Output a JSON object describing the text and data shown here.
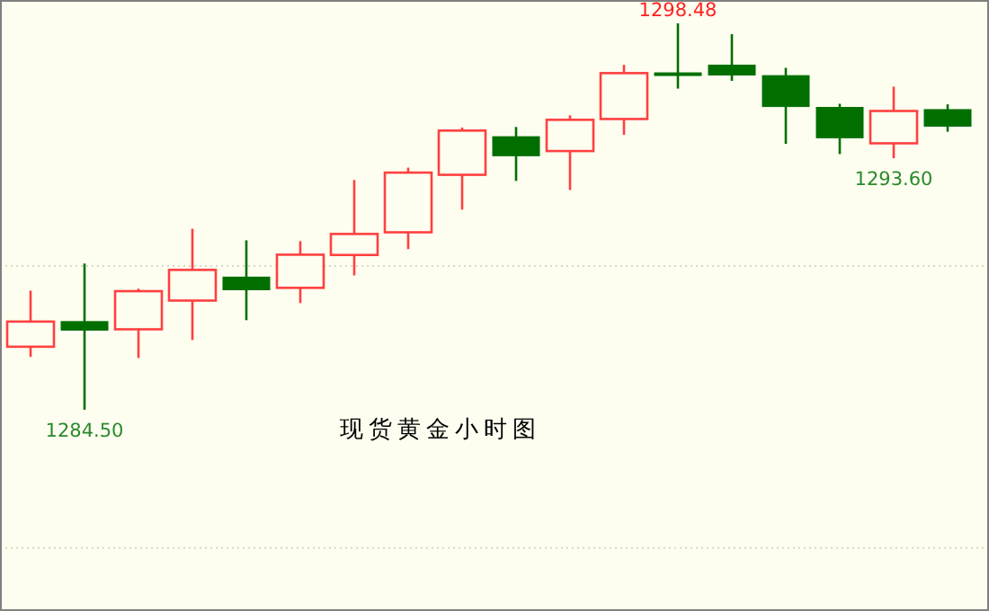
{
  "chart_data": {
    "type": "candlestick",
    "title": "现货黄金小时图",
    "categories": [
      null,
      null,
      null,
      null,
      null,
      null,
      null,
      null,
      null,
      null,
      null,
      null,
      null,
      null,
      null,
      null,
      null,
      null
    ],
    "ohlc": [
      [
        1286.78,
        1288.81,
        1286.41,
        1287.69
      ],
      [
        1287.69,
        1289.79,
        1284.5,
        1287.38
      ],
      [
        1287.41,
        1288.88,
        1286.37,
        1288.79
      ],
      [
        1288.45,
        1291.05,
        1287.02,
        1289.56
      ],
      [
        1289.3,
        1290.63,
        1287.74,
        1288.84
      ],
      [
        1288.91,
        1290.6,
        1288.36,
        1290.11
      ],
      [
        1290.1,
        1292.81,
        1289.36,
        1290.86
      ],
      [
        1290.92,
        1293.26,
        1290.31,
        1293.08
      ],
      [
        1293.0,
        1294.71,
        1291.74,
        1294.6
      ],
      [
        1294.38,
        1294.73,
        1292.78,
        1293.69
      ],
      [
        1293.86,
        1295.15,
        1292.45,
        1294.99
      ],
      [
        1295.02,
        1296.98,
        1294.45,
        1296.68
      ],
      [
        1296.69,
        1298.48,
        1296.12,
        1296.63
      ],
      [
        1296.97,
        1298.09,
        1296.4,
        1296.61
      ],
      [
        1296.59,
        1296.87,
        1294.12,
        1295.47
      ],
      [
        1295.44,
        1295.57,
        1293.75,
        1294.34
      ],
      [
        1294.14,
        1296.19,
        1293.6,
        1295.31
      ],
      [
        1295.36,
        1295.55,
        1294.56,
        1294.76
      ]
    ],
    "colors": [
      "#ff4040",
      "#006f00",
      "#ff4040",
      "#ff4040",
      "#006f00",
      "#ff4040",
      "#ff4040",
      "#ff4040",
      "#ff4040",
      "#006f00",
      "#ff4040",
      "#ff4040",
      "#006f00",
      "#006f00",
      "#006f00",
      "#006f00",
      "#ff4040",
      "#006f00"
    ],
    "annotations": [
      {
        "text": "1298.48",
        "y": 1298.48
      },
      {
        "text": "1284.50",
        "y": 1284.5
      },
      {
        "text": "1293.60",
        "y": 1293.6
      }
    ],
    "ref_lines": [
      {
        "axis": "y",
        "value": 1289.7,
        "color": "#d8d8c8",
        "line_style": "dotted"
      },
      {
        "axis": "y",
        "value": 1279.5,
        "color": "#d8d8c8",
        "line_style": "dotted"
      }
    ]
  }
}
